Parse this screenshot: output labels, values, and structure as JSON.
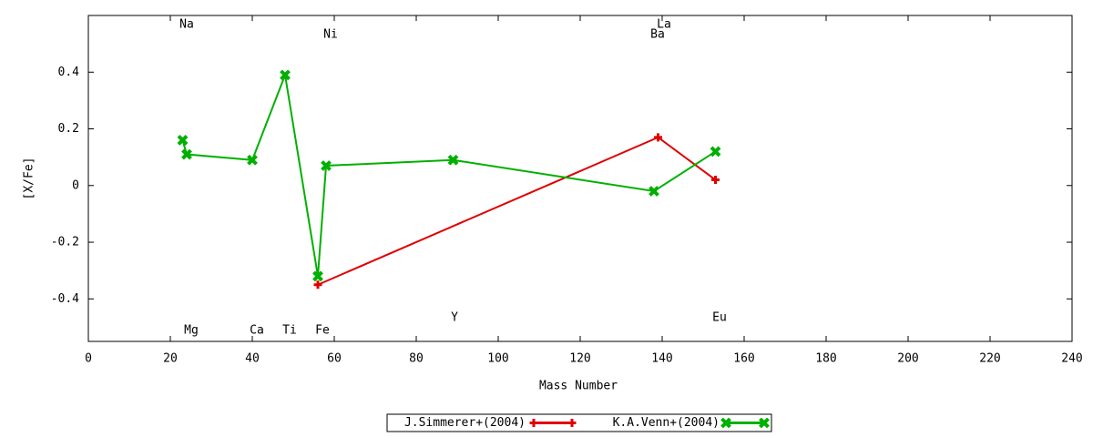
{
  "chart_data": {
    "type": "line",
    "x_label": "Mass Number",
    "y_label": "[X/Fe]",
    "xlim": [
      0,
      240
    ],
    "xticks": [
      0,
      20,
      40,
      60,
      80,
      100,
      120,
      140,
      160,
      180,
      200,
      220,
      240
    ],
    "ylim": [
      -0.55,
      0.6
    ],
    "yticks": [
      -0.4,
      -0.2,
      0,
      0.2,
      0.4
    ],
    "series": [
      {
        "name": "J.Simmerer+(2004)",
        "color": "#e00000",
        "marker": "plus",
        "x": [
          56,
          139,
          153
        ],
        "values": [
          -0.35,
          0.17,
          0.02
        ]
      },
      {
        "name": "K.A.Venn+(2004)",
        "color": "#00b000",
        "marker": "cross",
        "x": [
          23,
          24,
          40,
          48,
          56,
          58,
          89,
          138,
          153
        ],
        "values": [
          0.16,
          0.11,
          0.09,
          0.39,
          -0.32,
          0.07,
          0.09,
          -0.02,
          0.12
        ]
      }
    ],
    "annotations": [
      "Na",
      "Mg",
      "Ca",
      "Ti",
      "Fe",
      "Ni",
      "Y",
      "Ba",
      "La",
      "Eu"
    ],
    "legend": "bottom"
  }
}
